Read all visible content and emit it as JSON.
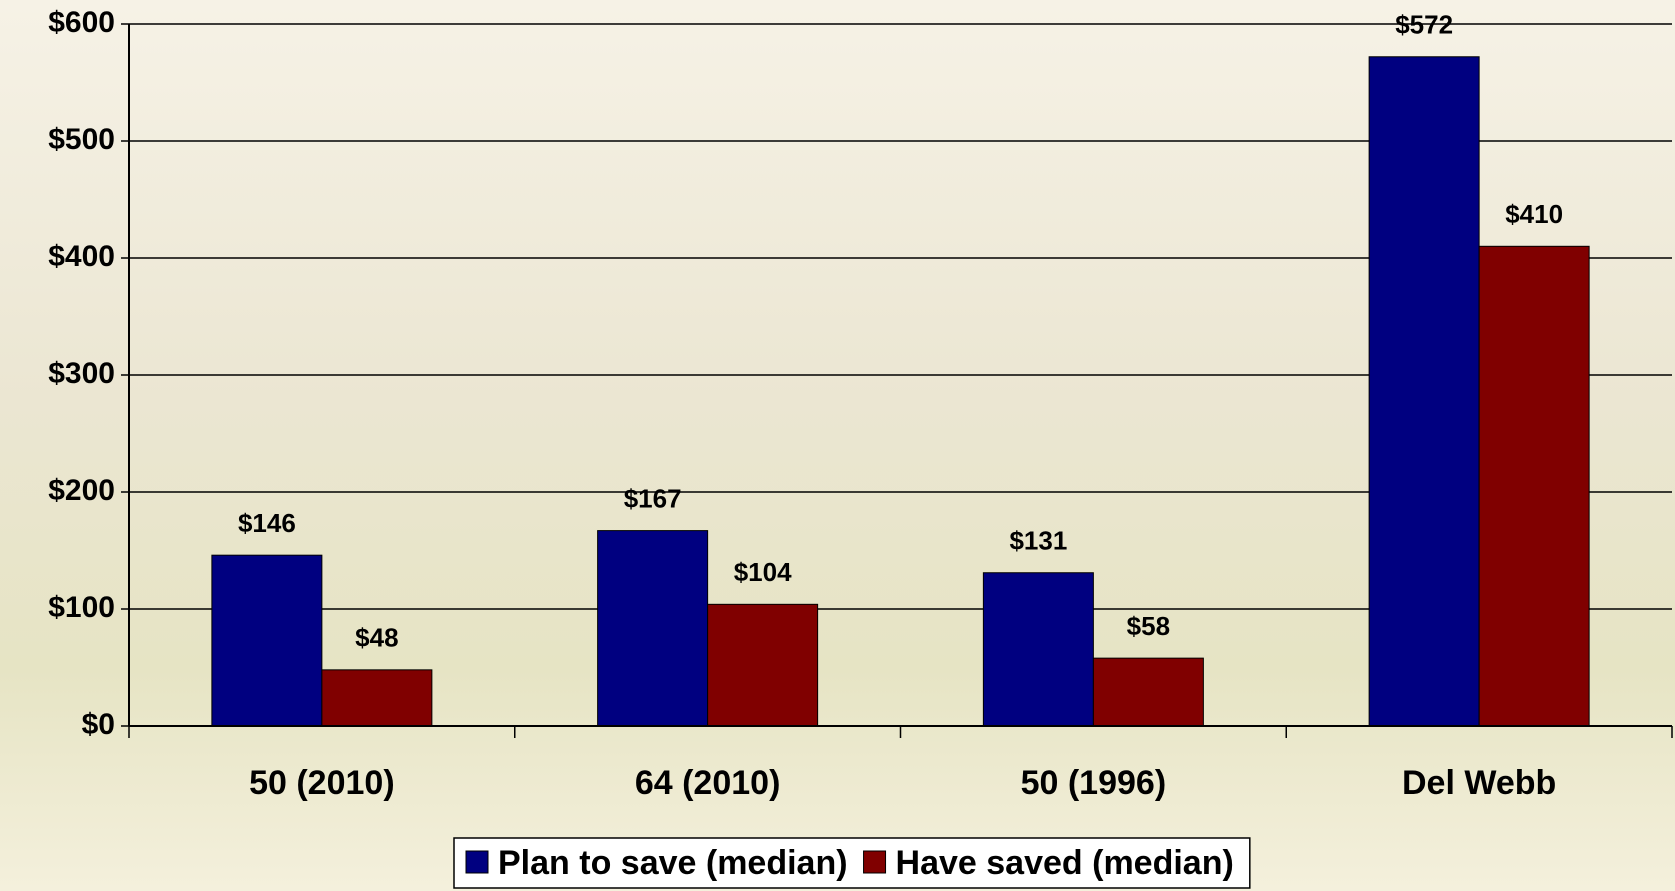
{
  "chart_data": {
    "type": "bar",
    "categories": [
      "50 (2010)",
      "64 (2010)",
      "50 (1996)",
      "Del Webb"
    ],
    "series": [
      {
        "name": "Plan to save (median)",
        "color": "#000080",
        "values": [
          146,
          167,
          131,
          572
        ],
        "value_labels": [
          "$146",
          "$167",
          "$131",
          "$572"
        ]
      },
      {
        "name": "Have saved (median)",
        "color": "#800000",
        "values": [
          48,
          104,
          58,
          410
        ],
        "value_labels": [
          "$48",
          "$104",
          "$58",
          "$410"
        ]
      }
    ],
    "ylim": [
      0,
      600
    ],
    "yticks": [
      {
        "value": 0,
        "label": "$0"
      },
      {
        "value": 100,
        "label": "$100"
      },
      {
        "value": 200,
        "label": "$200"
      },
      {
        "value": 300,
        "label": "$300"
      },
      {
        "value": 400,
        "label": "$400"
      },
      {
        "value": 500,
        "label": "$500"
      },
      {
        "value": 600,
        "label": "$600"
      }
    ],
    "grid": true
  }
}
